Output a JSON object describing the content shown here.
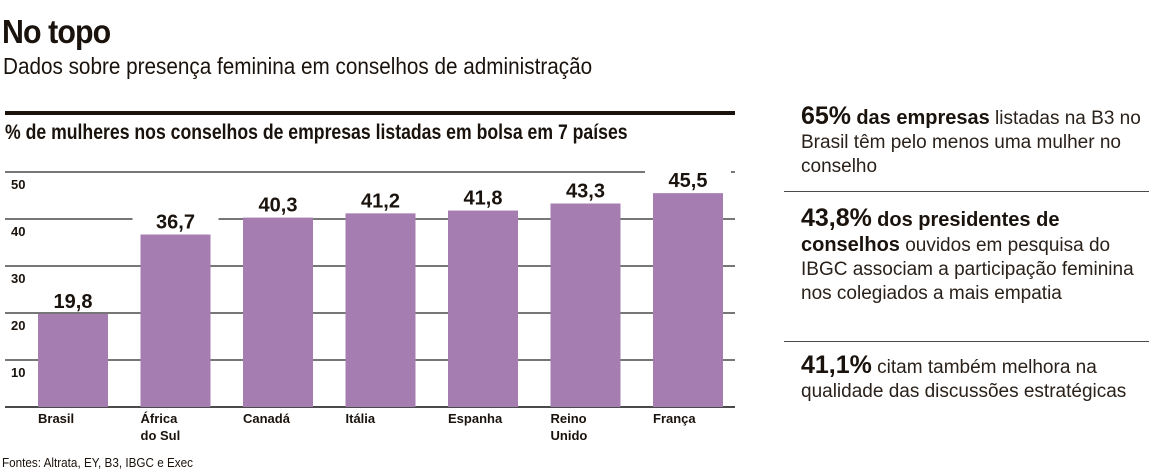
{
  "header": {
    "title": "No topo",
    "subtitle": "Dados sobre presença feminina em conselhos de administração"
  },
  "chart_data": {
    "type": "bar",
    "title": "% de mulheres nos conselhos de empresas listadas em bolsa em 7 países",
    "categories": [
      "Brasil",
      "África do Sul",
      "Canadá",
      "Itália",
      "Espanha",
      "Reino Unido",
      "França"
    ],
    "category_lines": [
      [
        "Brasil"
      ],
      [
        "África",
        "do Sul"
      ],
      [
        "Canadá"
      ],
      [
        "Itália"
      ],
      [
        "Espanha"
      ],
      [
        "Reino",
        "Unido"
      ],
      [
        "França"
      ]
    ],
    "values": [
      19.8,
      36.7,
      40.3,
      41.2,
      41.8,
      43.3,
      45.5
    ],
    "value_labels": [
      "19,8",
      "36,7",
      "40,3",
      "41,2",
      "41,8",
      "43,3",
      "45,5"
    ],
    "xlabel": "",
    "ylabel": "",
    "ylim": [
      0,
      50
    ],
    "yticks": [
      10,
      20,
      30,
      40,
      50
    ],
    "grid": true,
    "legend": "none",
    "bar_color": "#a67db0"
  },
  "source": "Fontes: Altrata, EY, B3, IBGC e Exec",
  "facts": [
    {
      "big": "65%",
      "strong": "das empresas",
      "rest": " listadas na B3 no Brasil têm pelo menos uma mulher no conselho"
    },
    {
      "big": "43,8%",
      "strong": "dos presidentes de conselhos",
      "rest": " ouvidos em pesquisa do IBGC associam a participação feminina nos colegiados a mais empatia"
    },
    {
      "big": "41,1%",
      "strong": "",
      "rest": " citam também melhora na qualidade das discussões estratégicas"
    }
  ]
}
